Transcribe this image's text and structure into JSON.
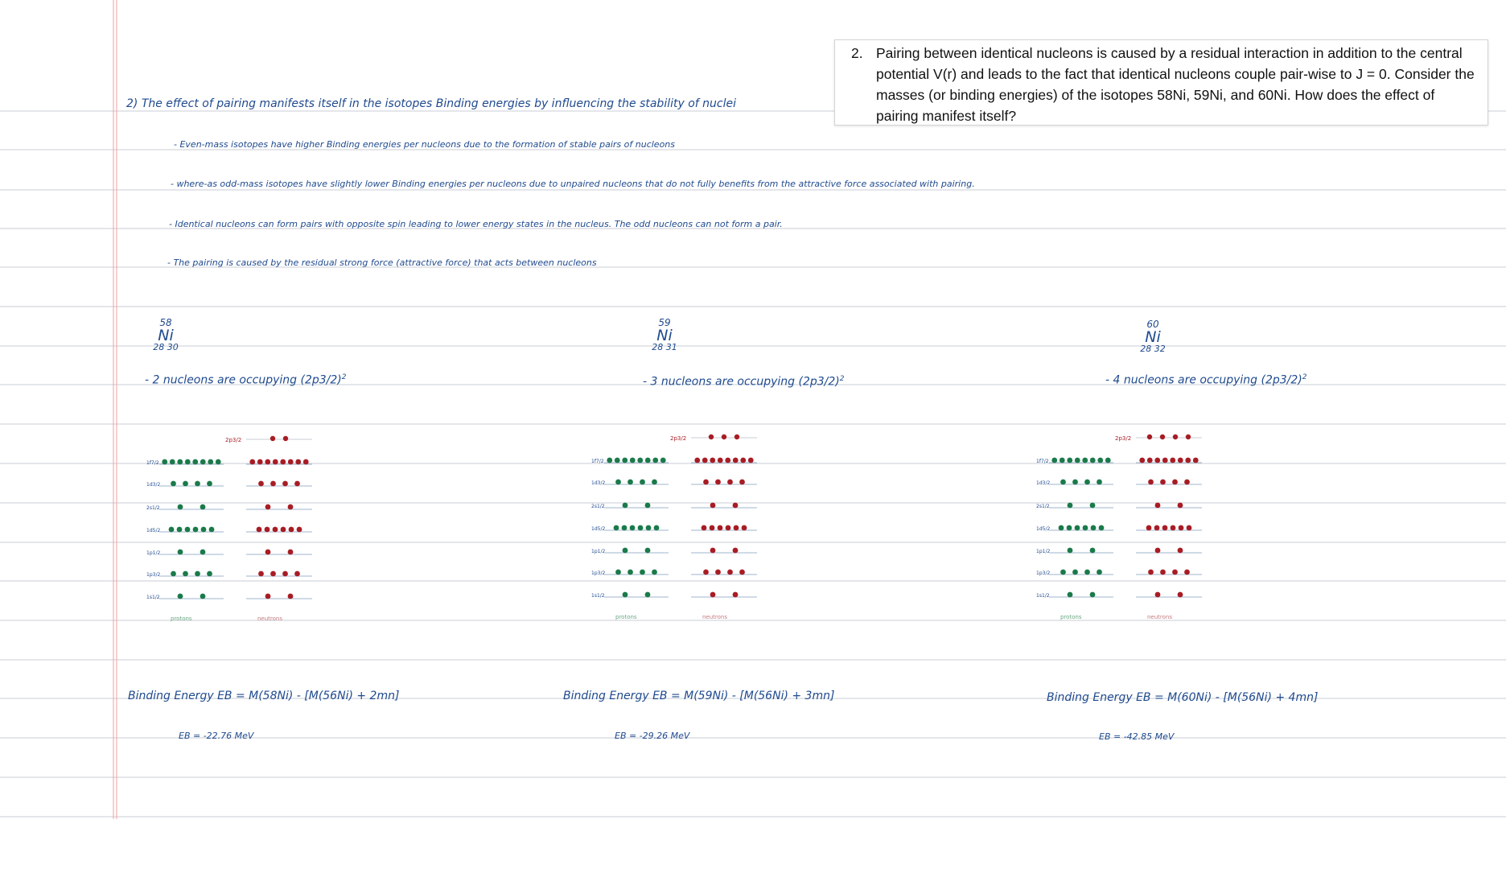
{
  "problem": {
    "number": "2.",
    "text": "Pairing between identical nucleons is caused by a residual interaction in addition to the central potential V(r) and leads to the fact that identical nucleons couple pair-wise to J = 0. Consider the masses (or binding energies) of the isotopes 58Ni, 59Ni, and 60Ni. How does the effect of pairing manifest itself?"
  },
  "notes": {
    "heading": "2) The effect of pairing manifests itself in the isotopes Binding energies by influencing the stability of nuclei",
    "bullets": [
      "- Even-mass isotopes have higher Binding energies per nucleons due to the formation of stable pairs of nucleons",
      "- where-as odd-mass isotopes have slightly lower Binding energies per nucleons due to unpaired nucleons that do not fully benefits from the attractive force associated with pairing.",
      "- Identical nucleons can form pairs with opposite spin leading to lower energy states in the nucleus. The odd nucleons can not form a pair.",
      "- The pairing is caused by the residual strong force (attractive force) that acts between nucleons"
    ]
  },
  "isotopes": [
    {
      "mass": "58",
      "symbol": "Ni",
      "zn": "28 30",
      "occupancy": "- 2 nucleons are occupying (2p3/2)",
      "power": "2",
      "top_label": "2p3/2",
      "levels": [
        "1f7/2",
        "1d3/2",
        "2s1/2",
        "1d5/2",
        "1p1/2",
        "1p3/2",
        "1s1/2"
      ],
      "proton_label": "protons",
      "neutron_label": "neutrons",
      "binding_formula": "Binding Energy  EB = M(58Ni) - [M(56Ni) + 2mn]",
      "result": "EB = -22.76 MeV",
      "chart_data": {
        "type": "table",
        "valence_neutrons": 2,
        "proton_counts": [
          8,
          4,
          2,
          6,
          2,
          4,
          2
        ],
        "neutron_counts": [
          8,
          4,
          2,
          6,
          2,
          4,
          2
        ]
      }
    },
    {
      "mass": "59",
      "symbol": "Ni",
      "zn": "28 31",
      "occupancy": "- 3 nucleons are occupying (2p3/2)",
      "power": "2",
      "top_label": "2p3/2",
      "levels": [
        "1f7/2",
        "1d3/2",
        "2s1/2",
        "1d5/2",
        "1p1/2",
        "1p3/2",
        "1s1/2"
      ],
      "proton_label": "protons",
      "neutron_label": "neutrons",
      "binding_formula": "Binding Energy  EB = M(59Ni) - [M(56Ni) + 3mn]",
      "result": "EB = -29.26 MeV",
      "chart_data": {
        "type": "table",
        "valence_neutrons": 3,
        "proton_counts": [
          8,
          4,
          2,
          6,
          2,
          4,
          2
        ],
        "neutron_counts": [
          8,
          4,
          2,
          6,
          2,
          4,
          2
        ]
      }
    },
    {
      "mass": "60",
      "symbol": "Ni",
      "zn": "28 32",
      "occupancy": "- 4 nucleons are occupying (2p3/2)",
      "power": "2",
      "top_label": "2p3/2",
      "levels": [
        "1f7/2",
        "1d3/2",
        "2s1/2",
        "1d5/2",
        "1p1/2",
        "1p3/2",
        "1s1/2"
      ],
      "proton_label": "protons",
      "neutron_label": "neutrons",
      "binding_formula": "Binding Energy  EB = M(60Ni) - [M(56Ni) + 4mn]",
      "result": "EB = -42.85 MeV",
      "chart_data": {
        "type": "table",
        "valence_neutrons": 4,
        "proton_counts": [
          8,
          4,
          2,
          6,
          2,
          4,
          2
        ],
        "neutron_counts": [
          8,
          4,
          2,
          6,
          2,
          4,
          2
        ]
      }
    }
  ],
  "colors": {
    "ink": "#1f4a8e",
    "proton": "#1a7a4a",
    "neutron": "#a81c24",
    "margin": "#f2a0a0",
    "rule": "#c8ccd4"
  }
}
